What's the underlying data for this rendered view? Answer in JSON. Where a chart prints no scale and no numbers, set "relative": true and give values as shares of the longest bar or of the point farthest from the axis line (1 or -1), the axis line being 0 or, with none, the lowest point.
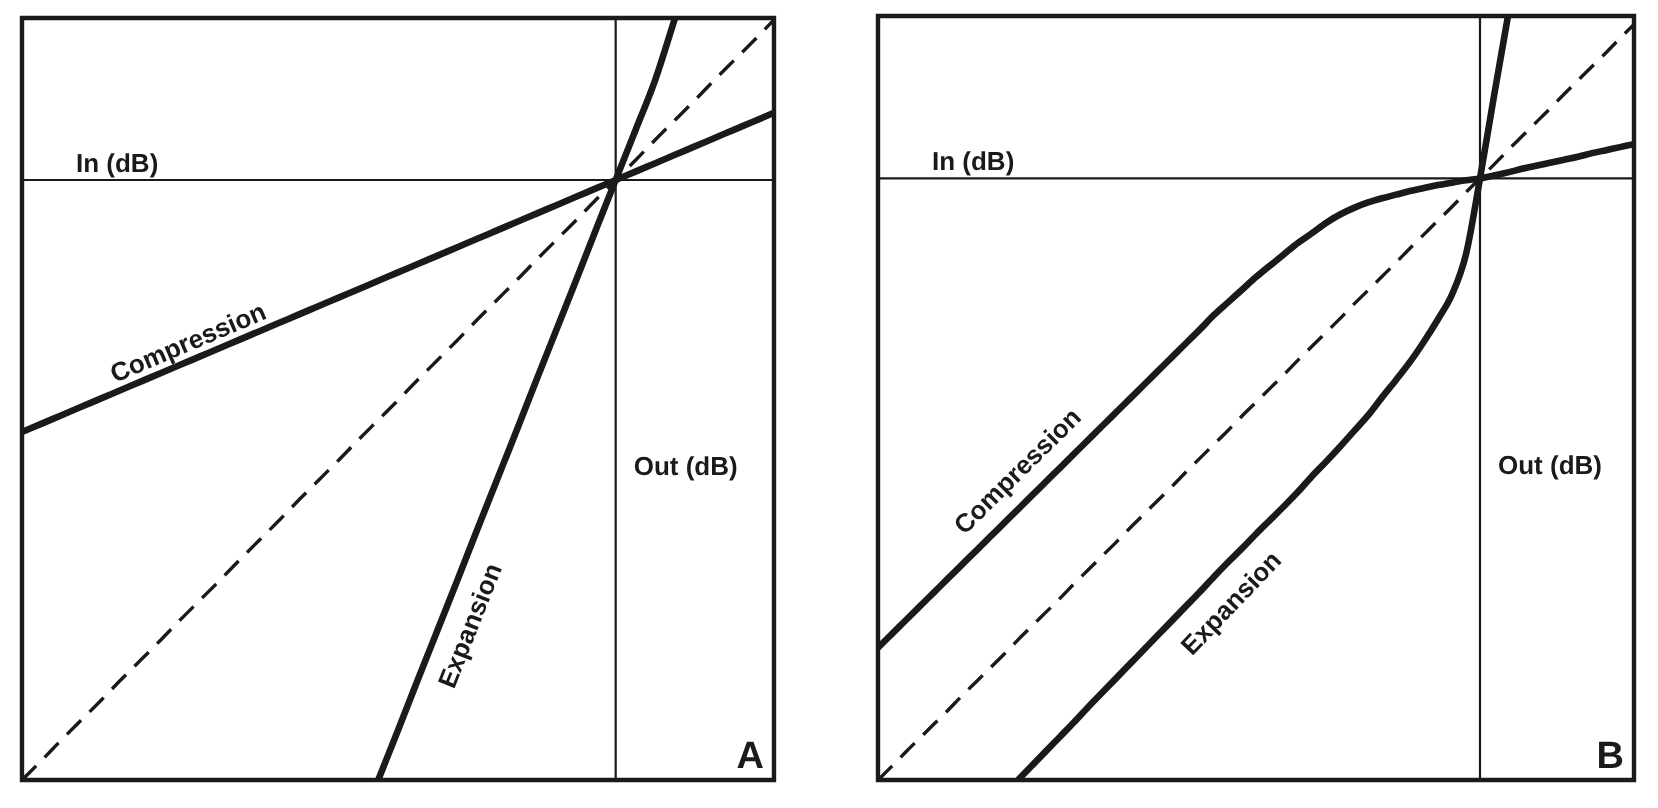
{
  "chart_data": [
    {
      "type": "line",
      "title": "A",
      "xlabel": "In (dB)",
      "ylabel": "Out (dB)",
      "relative": true,
      "tick_labels": false,
      "categories": [
        null,
        null,
        null,
        null,
        null,
        null,
        null,
        null,
        null,
        null,
        null,
        null,
        null,
        null,
        null,
        null,
        null,
        null,
        null,
        null,
        null,
        null,
        null,
        null,
        null,
        null,
        null,
        null,
        null,
        null,
        null,
        null,
        null,
        null,
        null,
        null,
        null,
        null,
        null
      ],
      "series": [
        {
          "name": "Compression",
          "color": "#1a1a1a",
          "values": [
            -0.42,
            -0.406,
            -0.392,
            -0.378,
            -0.364,
            -0.35,
            -0.336,
            -0.322,
            -0.308,
            -0.294,
            -0.28,
            -0.266,
            -0.252,
            -0.238,
            -0.224,
            -0.21,
            -0.196,
            -0.182,
            -0.168,
            -0.154,
            -0.14,
            -0.126,
            -0.112,
            -0.098,
            -0.084,
            -0.07,
            -0.056,
            -0.042,
            -0.028,
            -0.014,
            0,
            0.014,
            0.028,
            0.042,
            0.056,
            0.07,
            0.084,
            0.098,
            0.112
          ]
        },
        {
          "name": "Expansion",
          "color": "#1a1a1a",
          "values": [
            null,
            null,
            null,
            null,
            null,
            null,
            null,
            null,
            null,
            null,
            null,
            null,
            null,
            null,
            null,
            null,
            null,
            null,
            -1,
            -0.917,
            -0.833,
            -0.75,
            -0.667,
            -0.583,
            -0.5,
            -0.417,
            -0.333,
            -0.25,
            -0.167,
            -0.083,
            0,
            0.083,
            0.167,
            0.27,
            null,
            null,
            null,
            null,
            null
          ]
        },
        {
          "color": "#1a1a1a",
          "line_style": "dashed",
          "values": [
            -1,
            -0.967,
            -0.933,
            -0.9,
            -0.867,
            -0.833,
            -0.8,
            -0.767,
            -0.733,
            -0.7,
            -0.667,
            -0.633,
            -0.6,
            -0.567,
            -0.533,
            -0.5,
            -0.467,
            -0.433,
            -0.4,
            -0.367,
            -0.333,
            -0.3,
            -0.267,
            -0.233,
            -0.2,
            -0.167,
            -0.133,
            -0.1,
            -0.067,
            -0.033,
            0,
            0.033,
            0.067,
            0.1,
            0.133,
            0.167,
            0.2,
            0.233,
            0.267
          ]
        }
      ]
    },
    {
      "type": "line",
      "title": "B",
      "xlabel": "In (dB)",
      "ylabel": "Out (dB)",
      "relative": true,
      "tick_labels": false,
      "categories": [
        null,
        null,
        null,
        null,
        null,
        null,
        null,
        null,
        null,
        null,
        null,
        null,
        null,
        null,
        null,
        null,
        null,
        null,
        null,
        null,
        null,
        null,
        null,
        null,
        null,
        null,
        null,
        null,
        null,
        null,
        null,
        null,
        null,
        null,
        null,
        null,
        null,
        null,
        null,
        null,
        null,
        null,
        null,
        null,
        null,
        null,
        null,
        null,
        null,
        null,
        null,
        null,
        null,
        null,
        null
      ],
      "series": [
        {
          "name": "Compression",
          "color": "#1a1a1a",
          "values": [
            -0.78,
            -0.757,
            -0.734,
            -0.711,
            -0.688,
            -0.665,
            -0.642,
            -0.619,
            -0.596,
            -0.573,
            -0.55,
            -0.527,
            -0.504,
            -0.481,
            -0.458,
            -0.435,
            -0.412,
            -0.389,
            -0.366,
            -0.343,
            -0.32,
            -0.297,
            -0.274,
            -0.251,
            -0.227,
            -0.206,
            -0.185,
            -0.164,
            -0.145,
            -0.126,
            -0.107,
            -0.091,
            -0.074,
            -0.06,
            -0.049,
            -0.04,
            -0.033,
            -0.027,
            -0.021,
            -0.016,
            -0.011,
            -0.007,
            -0.003,
            0,
            0.005,
            0.01,
            0.016,
            0.021,
            0.026,
            0.031,
            0.036,
            0.042,
            0.047,
            0.052,
            0.057
          ]
        },
        {
          "name": "Expansion",
          "color": "#1a1a1a",
          "values": [
            null,
            null,
            null,
            null,
            null,
            null,
            null,
            null,
            null,
            null,
            -1,
            -0.976,
            -0.952,
            -0.928,
            -0.904,
            -0.879,
            -0.855,
            -0.831,
            -0.807,
            -0.783,
            -0.759,
            -0.735,
            -0.711,
            -0.687,
            -0.662,
            -0.638,
            -0.615,
            -0.591,
            -0.568,
            -0.545,
            -0.521,
            -0.495,
            -0.471,
            -0.446,
            -0.42,
            -0.394,
            -0.364,
            -0.335,
            -0.305,
            -0.271,
            -0.234,
            -0.193,
            -0.126,
            0,
            0.137,
            0.27,
            null,
            null,
            null,
            null,
            null,
            null,
            null,
            null,
            null
          ]
        },
        {
          "color": "#1a1a1a",
          "line_style": "dashed",
          "values": [
            -1,
            -0.977,
            -0.953,
            -0.93,
            -0.907,
            -0.884,
            -0.86,
            -0.837,
            -0.814,
            -0.791,
            -0.767,
            -0.744,
            -0.721,
            -0.698,
            -0.674,
            -0.651,
            -0.628,
            -0.605,
            -0.581,
            -0.558,
            -0.535,
            -0.512,
            -0.488,
            -0.465,
            -0.442,
            -0.419,
            -0.395,
            -0.372,
            -0.349,
            -0.326,
            -0.302,
            -0.279,
            -0.256,
            -0.233,
            -0.209,
            -0.186,
            -0.163,
            -0.14,
            -0.116,
            -0.093,
            -0.07,
            -0.047,
            -0.023,
            0,
            0.023,
            0.047,
            0.07,
            0.093,
            0.116,
            0.14,
            0.163,
            0.186,
            0.209,
            0.233,
            0.256
          ]
        }
      ]
    }
  ]
}
